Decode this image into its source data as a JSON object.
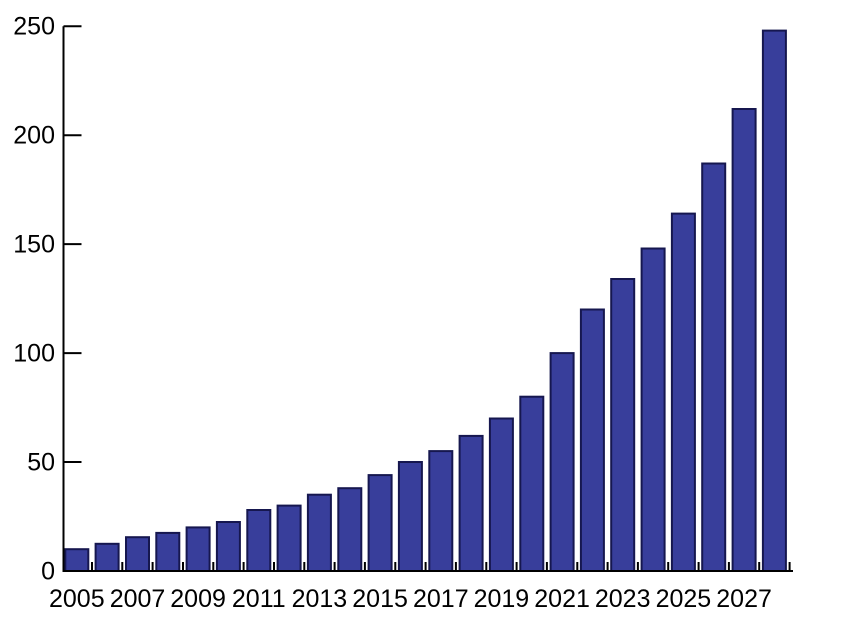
{
  "chart_data": {
    "type": "bar",
    "title": "",
    "xlabel": "",
    "ylabel": "",
    "categories": [
      "2005",
      "2006",
      "2007",
      "2008",
      "2009",
      "2010",
      "2011",
      "2012",
      "2013",
      "2014",
      "2015",
      "2016",
      "2017",
      "2018",
      "2019",
      "2020",
      "2021",
      "2022",
      "2023",
      "2024",
      "2025",
      "2026",
      "2027",
      "2028"
    ],
    "values": [
      10,
      12.5,
      15.5,
      17.5,
      20,
      22.5,
      28,
      30,
      35,
      38,
      44,
      50,
      55,
      62,
      70,
      80,
      100,
      120,
      134,
      148,
      164,
      187,
      212,
      248
    ],
    "ylim": [
      0,
      250
    ],
    "yticks": [
      0,
      50,
      100,
      150,
      200,
      250
    ],
    "xtick_labels": [
      "2005",
      "2007",
      "2009",
      "2011",
      "2013",
      "2015",
      "2017",
      "2019",
      "2021",
      "2023",
      "2025",
      "2027"
    ],
    "xtick_label_every": 2,
    "grid": false,
    "legend_position": "none",
    "bar_color": "#383E9B",
    "bar_border_color": "#16174F",
    "axis_color": "#000000",
    "label_color": "#000000",
    "background_color": "#FFFFFF"
  }
}
